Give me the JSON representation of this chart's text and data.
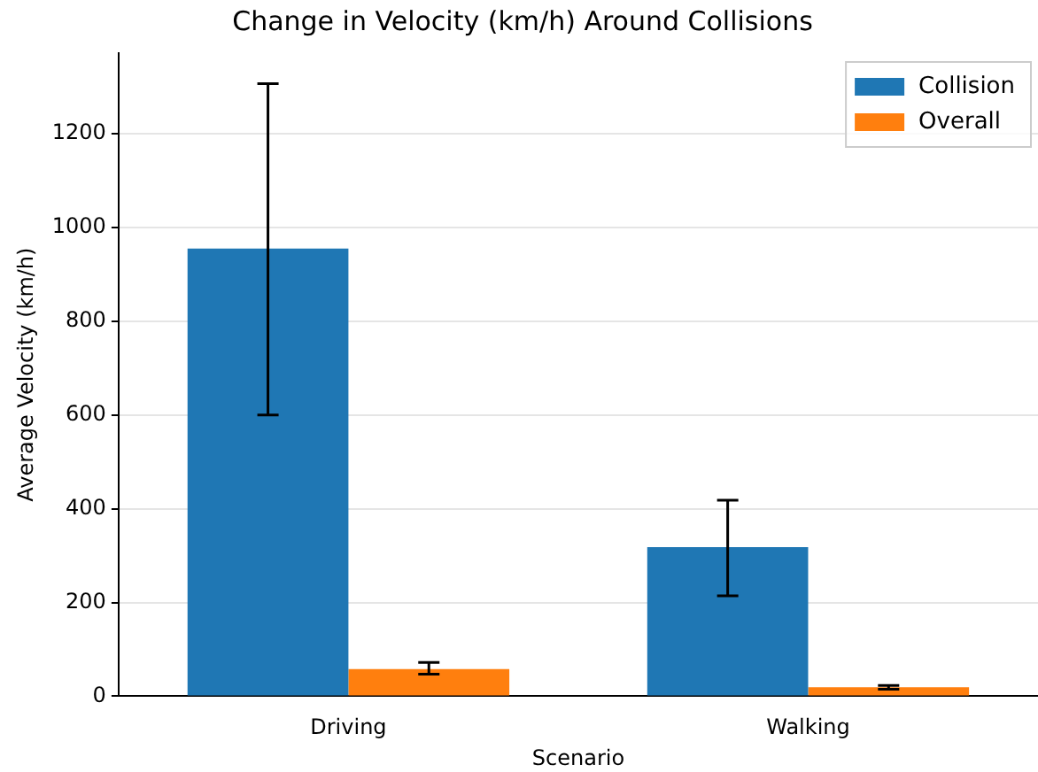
{
  "chart_data": {
    "type": "bar",
    "title": "Change in Velocity (km/h) Around Collisions",
    "xlabel": "Scenario",
    "ylabel": "Average Velocity (km/h)",
    "categories": [
      "Driving",
      "Walking"
    ],
    "series": [
      {
        "name": "Collision",
        "color": "#1f77b4",
        "values": [
          955,
          318
        ],
        "errors": [
          [
            600,
            1307
          ],
          [
            214,
            418
          ]
        ]
      },
      {
        "name": "Overall",
        "color": "#ff7f0e",
        "values": [
          58,
          19
        ],
        "errors": [
          [
            47,
            72
          ],
          [
            15,
            23
          ]
        ]
      }
    ],
    "ylim": [
      0,
      1372
    ],
    "yticks": [
      0,
      200,
      400,
      600,
      800,
      1000,
      1200
    ],
    "grid": "y",
    "legend": "top right"
  }
}
